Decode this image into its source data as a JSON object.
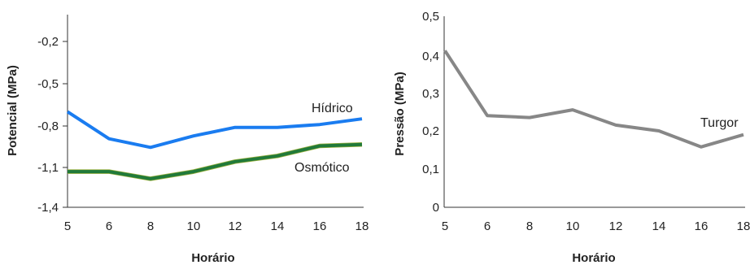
{
  "chart_data": [
    {
      "type": "line",
      "title": "",
      "xlabel": "Horário",
      "ylabel": "Potencial (MPa)",
      "x": [
        5,
        6,
        8,
        10,
        12,
        14,
        16,
        18
      ],
      "x_ticks": [
        "5",
        "6",
        "8",
        "10",
        "12",
        "14",
        "16",
        "18"
      ],
      "y_ticks": [
        "-0,2",
        "-0,5",
        "-0,8",
        "-1,1",
        "-1,4"
      ],
      "ylim": [
        -1.4,
        -0.05
      ],
      "grid": false,
      "series": [
        {
          "name": "Hídrico",
          "color": "#1a7cf0",
          "values": [
            -0.73,
            -0.92,
            -0.98,
            -0.9,
            -0.84,
            -0.84,
            -0.82,
            -0.78
          ]
        },
        {
          "name": "Osmótico",
          "color": "#217a3a",
          "values": [
            -1.15,
            -1.15,
            -1.2,
            -1.15,
            -1.08,
            -1.04,
            -0.97,
            -0.96
          ]
        }
      ]
    },
    {
      "type": "line",
      "title": "",
      "xlabel": "Horário",
      "ylabel": "Pressão (MPa)",
      "x": [
        5,
        6,
        8,
        10,
        12,
        14,
        16,
        18
      ],
      "x_ticks": [
        "5",
        "6",
        "8",
        "10",
        "12",
        "14",
        "16",
        "18"
      ],
      "y_ticks": [
        "0,5",
        "0,4",
        "0,3",
        "0,2",
        "0,1",
        "0"
      ],
      "ylim": [
        0,
        0.5
      ],
      "grid": false,
      "series": [
        {
          "name": "Turgor",
          "color": "#878787",
          "values": [
            0.41,
            0.24,
            0.235,
            0.255,
            0.215,
            0.2,
            0.158,
            0.19
          ]
        }
      ]
    }
  ]
}
